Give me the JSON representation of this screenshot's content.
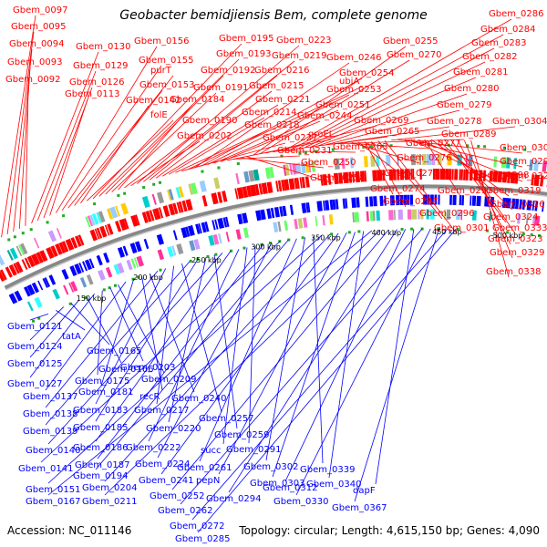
{
  "header": {
    "title": "Geobacter bemidjiensis Bem, complete genome"
  },
  "footer": {
    "accession": "Accession: NC_011146",
    "summary": "Topology: circular; Length: 4,615,150 bp; Genes: 4,090"
  },
  "colors": {
    "forward_strand": "#ff0000",
    "reverse_strand": "#0000ff",
    "backbone": "#888888",
    "rna_marker": "#22aa22"
  },
  "scale_ticks": [
    "150 kbp",
    "200 kbp",
    "250 kbp",
    "300 kbp",
    "350 kbp",
    "400 kbp",
    "450 kbp",
    "500 kbp"
  ],
  "forward_labels": [
    "Gbem_0097",
    "Gbem_0095",
    "Gbem_0094",
    "Gbem_0093",
    "Gbem_0092",
    "Gbem_0130",
    "Gbem_0129",
    "Gbem_0126",
    "Gbem_0113",
    "Gbem_0156",
    "Gbem_0155",
    "purT",
    "Gbem_0153",
    "Gbem_0142",
    "folE",
    "Gbem_0195",
    "Gbem_0193",
    "Gbem_0192",
    "Gbem_0191",
    "Gbem_0184",
    "Gbem_0190",
    "Gbem_0202",
    "Gbem_0223",
    "Gbem_0219",
    "Gbem_0216",
    "Gbem_0215",
    "Gbem_0221",
    "Gbem_0214",
    "Gbem_0218",
    "Gbem_0227",
    "ubiA",
    "Gbem_0246",
    "Gbem_0254",
    "Gbem_0253",
    "Gbem_0251",
    "Gbem_0244",
    "groEL",
    "Gbem_0231",
    "Gbem_0250",
    "Gbem_0258",
    "Gbem_0255",
    "Gbem_0270",
    "Gbem_0269",
    "Gbem_0265",
    "Gbem_0263",
    "Gbem_0286",
    "Gbem_0284",
    "Gbem_0283",
    "Gbem_0282",
    "Gbem_0281",
    "Gbem_0280",
    "Gbem_0279",
    "Gbem_0278",
    "Gbem_0289",
    "Gbem_0277",
    "Gbem_0276",
    "Gbem_0275",
    "Gbem_0274",
    "Gbem_0287",
    "Gbem_0296",
    "Gbem_0301",
    "Gbem_0304",
    "Gbem_0300",
    "Gbem_0299",
    "Gbem_0298",
    "Gbem_0320",
    "Gbem_0297",
    "Gbem_0319",
    "Gbem_0316",
    "Gbem_0324",
    "Gbem_0333",
    "Gbem_0323",
    "Gbem_0329",
    "Gbem_0338"
  ],
  "reverse_labels": [
    "Gbem_0121",
    "tatA",
    "Gbem_0124",
    "Gbem_0165",
    "Gbem_0125",
    "Gbem_0166",
    "Gbem_0127",
    "Gbem_0175",
    "Gbem_0203",
    "Gbem_0209",
    "Gbem_0137",
    "Gbem_0181",
    "recR",
    "Gbem_0240",
    "Gbem_0138",
    "Gbem_0183",
    "Gbem_0217",
    "Gbem_0257",
    "Gbem_0139",
    "Gbem_0185",
    "Gbem_0220",
    "Gbem_0259",
    "Gbem_0140",
    "Gbem_0186",
    "Gbem_0222",
    "succ",
    "Gbem_0291",
    "Gbem_0187",
    "Gbem_0224",
    "Gbem_0141",
    "Gbem_0194",
    "Gbem_0261",
    "Gbem_0302",
    "Gbem_0339",
    "Gbem_0151",
    "Gbem_0204",
    "Gbem_0241",
    "pepN",
    "Gbem_0303",
    "Gbem_0340",
    "Gbem_0167",
    "Gbem_0211",
    "Gbem_0252",
    "Gbem_0294",
    "Gbem_0312",
    "dapF",
    "Gbem_0262",
    "Gbem_0330",
    "Gbem_0367",
    "Gbem_0272",
    "Gbem_0285"
  ]
}
